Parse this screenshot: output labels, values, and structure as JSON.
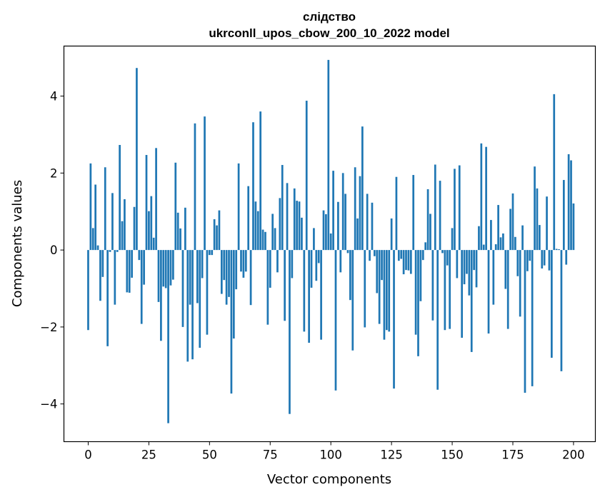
{
  "chart_data": {
    "type": "bar",
    "title": "слідство",
    "subtitle": "ukrconll_upos_cbow_200_10_2022 model",
    "xlabel": "Vector components",
    "ylabel": "Components values",
    "xlim": [
      -10,
      209
    ],
    "ylim": [
      -4.98,
      5.3
    ],
    "x_ticks": [
      0,
      25,
      50,
      75,
      100,
      125,
      150,
      175,
      200
    ],
    "y_ticks": [
      -4,
      -2,
      0,
      2,
      4
    ],
    "y_tick_labels": [
      "−4",
      "−2",
      "0",
      "2",
      "4"
    ],
    "bar_color": "#1f77b4",
    "grid": false,
    "values": [
      -2.08,
      2.25,
      0.57,
      1.7,
      0.12,
      -1.32,
      -0.7,
      2.15,
      -2.5,
      -0.05,
      1.48,
      -1.42,
      -0.05,
      2.73,
      0.75,
      1.32,
      -1.1,
      -1.11,
      -0.72,
      1.12,
      4.73,
      -0.26,
      -1.92,
      -0.9,
      2.47,
      1.01,
      1.4,
      0.32,
      2.65,
      -1.35,
      -2.36,
      -0.95,
      -0.99,
      -4.5,
      -0.92,
      -0.77,
      2.27,
      0.97,
      0.56,
      -2.0,
      1.1,
      -2.9,
      -1.42,
      -2.84,
      3.29,
      -1.38,
      -2.54,
      -0.73,
      3.47,
      -2.2,
      -0.13,
      -0.13,
      0.8,
      0.64,
      1.03,
      -1.14,
      -0.78,
      -1.42,
      -1.22,
      -3.73,
      -2.3,
      -1.02,
      2.25,
      -0.56,
      -0.72,
      -0.56,
      1.66,
      -1.43,
      3.32,
      1.26,
      1.01,
      3.6,
      0.53,
      0.47,
      -1.94,
      -0.98,
      0.94,
      0.57,
      -0.58,
      1.35,
      2.21,
      -1.84,
      1.74,
      -4.26,
      -0.73,
      1.6,
      1.28,
      1.26,
      0.84,
      -2.12,
      3.88,
      -2.41,
      -0.98,
      0.57,
      -0.8,
      -0.34,
      -2.33,
      1.03,
      0.93,
      4.94,
      0.43,
      2.06,
      -3.65,
      1.25,
      -0.58,
      2.0,
      1.46,
      -0.08,
      -1.3,
      -2.61,
      2.15,
      0.82,
      1.92,
      3.21,
      -2.01,
      1.46,
      -0.28,
      1.23,
      -0.16,
      -1.12,
      -1.92,
      -0.78,
      -2.33,
      -2.08,
      -2.12,
      0.82,
      -3.6,
      1.9,
      -0.28,
      -0.23,
      -0.63,
      -0.52,
      -0.53,
      -0.62,
      1.95,
      -2.2,
      -2.76,
      -1.33,
      -0.26,
      0.2,
      1.58,
      0.94,
      -1.83,
      2.22,
      -3.63,
      1.8,
      -0.08,
      -2.08,
      -0.4,
      -2.05,
      0.57,
      2.11,
      -0.73,
      2.2,
      -2.28,
      -0.89,
      -0.62,
      -1.18,
      -2.65,
      -0.52,
      -0.97,
      0.62,
      2.77,
      0.14,
      2.68,
      -2.17,
      0.78,
      -1.42,
      0.15,
      1.17,
      0.33,
      0.43,
      -1.01,
      -2.05,
      1.07,
      1.47,
      0.34,
      -0.68,
      -1.73,
      0.64,
      -3.71,
      -0.55,
      -0.28,
      -3.54,
      2.17,
      1.6,
      0.65,
      -0.48,
      -0.4,
      1.39,
      -0.53,
      -2.8,
      4.05,
      0.03,
      0.02,
      -3.15,
      1.82,
      -0.38,
      2.49,
      2.33,
      1.21
    ]
  }
}
